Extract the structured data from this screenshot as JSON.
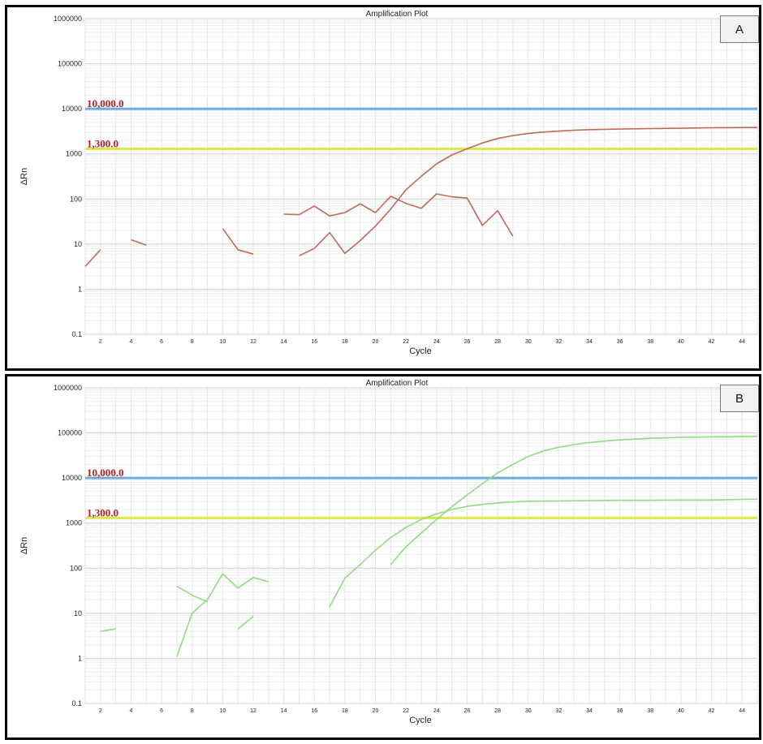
{
  "chart_data": [
    {
      "panel_label": "A",
      "type": "line",
      "title": "Amplification Plot",
      "xlabel": "Cycle",
      "ylabel": "ΔRn",
      "xlim": [
        1,
        45
      ],
      "ylim": [
        0.1,
        1000000
      ],
      "y_scale": "log",
      "x_ticks": [
        2,
        4,
        6,
        8,
        10,
        12,
        14,
        16,
        18,
        20,
        22,
        24,
        26,
        28,
        30,
        32,
        34,
        36,
        38,
        40,
        42,
        44
      ],
      "y_ticks": [
        0.1,
        1,
        10,
        100,
        1000,
        10000,
        100000,
        1000000
      ],
      "y_tick_labels": [
        "0.1",
        "1",
        "10",
        "100",
        "1000",
        "10000",
        "100000",
        "1000000"
      ],
      "grid": true,
      "thresholds": [
        {
          "label": "10,000.0",
          "value": 10000,
          "color": "#6aaee0"
        },
        {
          "label": "1,300.0",
          "value": 1300,
          "color": "#d9e84f"
        }
      ],
      "series_color": "#c0695a",
      "series": [
        {
          "segments": [
            [
              [
                1,
                3.2
              ],
              [
                2,
                7.5
              ]
            ],
            [
              [
                4,
                12.5
              ],
              [
                5,
                9.5
              ]
            ],
            [
              [
                10,
                22
              ],
              [
                11,
                7.5
              ],
              [
                12,
                6
              ]
            ],
            [
              [
                15,
                5.5
              ],
              [
                16,
                8
              ],
              [
                17,
                18
              ],
              [
                18,
                6.2
              ],
              [
                19,
                12
              ],
              [
                20,
                25
              ],
              [
                21,
                60
              ],
              [
                22,
                160
              ],
              [
                23,
                320
              ],
              [
                24,
                600
              ],
              [
                25,
                950
              ],
              [
                26,
                1300
              ],
              [
                27,
                1750
              ],
              [
                28,
                2200
              ],
              [
                29,
                2550
              ],
              [
                30,
                2850
              ],
              [
                31,
                3050
              ],
              [
                32,
                3200
              ],
              [
                33,
                3350
              ],
              [
                34,
                3450
              ],
              [
                36,
                3550
              ],
              [
                38,
                3650
              ],
              [
                40,
                3700
              ],
              [
                42,
                3800
              ],
              [
                44,
                3850
              ],
              [
                45,
                3850
              ]
            ]
          ]
        },
        {
          "segments": [
            [
              [
                14,
                46
              ],
              [
                15,
                45
              ],
              [
                16,
                70
              ],
              [
                17,
                42
              ],
              [
                18,
                50
              ],
              [
                19,
                78
              ],
              [
                20,
                50
              ],
              [
                21,
                115
              ],
              [
                22,
                80
              ],
              [
                23,
                62
              ],
              [
                24,
                130
              ],
              [
                25,
                112
              ],
              [
                26,
                105
              ],
              [
                27,
                26
              ],
              [
                28,
                55
              ],
              [
                29,
                15
              ]
            ]
          ]
        }
      ]
    },
    {
      "panel_label": "B",
      "type": "line",
      "title": "Amplification Plot",
      "xlabel": "Cycle",
      "ylabel": "ΔRn",
      "xlim": [
        1,
        45
      ],
      "ylim": [
        0.1,
        1000000
      ],
      "y_scale": "log",
      "x_ticks": [
        2,
        4,
        6,
        8,
        10,
        12,
        14,
        16,
        18,
        20,
        22,
        24,
        26,
        28,
        30,
        32,
        34,
        36,
        38,
        40,
        42,
        44
      ],
      "y_ticks": [
        0.1,
        1,
        10,
        100,
        1000,
        10000,
        100000,
        1000000
      ],
      "y_tick_labels": [
        "0.1",
        "1",
        "10",
        "100",
        "1000",
        "10000",
        "100000",
        "1000000"
      ],
      "grid": true,
      "thresholds": [
        {
          "label": "10,000.0",
          "value": 10000,
          "color": "#6aaee0"
        },
        {
          "label": "1,300.0",
          "value": 1300,
          "color": "#d9e84f"
        }
      ],
      "series_color": "#8fdc82",
      "series": [
        {
          "segments": [
            [
              [
                2,
                4
              ],
              [
                3,
                4.5
              ]
            ],
            [
              [
                7,
                1.1
              ],
              [
                8,
                10
              ],
              [
                9,
                20
              ],
              [
                10,
                75
              ],
              [
                11,
                36
              ],
              [
                12,
                62
              ],
              [
                13,
                50
              ]
            ],
            [
              [
                11,
                4.5
              ],
              [
                12,
                8.5
              ]
            ],
            [
              [
                17,
                14
              ],
              [
                18,
                60
              ],
              [
                19,
                120
              ],
              [
                20,
                250
              ],
              [
                21,
                480
              ],
              [
                22,
                800
              ],
              [
                23,
                1200
              ],
              [
                24,
                1600
              ],
              [
                25,
                2000
              ],
              [
                26,
                2350
              ],
              [
                27,
                2600
              ],
              [
                28,
                2800
              ],
              [
                29,
                2950
              ],
              [
                30,
                3050
              ],
              [
                32,
                3100
              ],
              [
                34,
                3150
              ],
              [
                36,
                3200
              ],
              [
                38,
                3200
              ],
              [
                40,
                3250
              ],
              [
                42,
                3250
              ],
              [
                44,
                3350
              ],
              [
                45,
                3400
              ]
            ]
          ]
        },
        {
          "segments": [
            [
              [
                7,
                40
              ],
              [
                8,
                25
              ],
              [
                9,
                18
              ]
            ],
            [
              [
                21,
                120
              ],
              [
                22,
                300
              ],
              [
                23,
                600
              ],
              [
                24,
                1200
              ],
              [
                25,
                2300
              ],
              [
                26,
                4200
              ],
              [
                27,
                7500
              ],
              [
                28,
                13000
              ],
              [
                29,
                20000
              ],
              [
                30,
                30000
              ],
              [
                31,
                40000
              ],
              [
                32,
                48000
              ],
              [
                33,
                55000
              ],
              [
                34,
                61000
              ],
              [
                35,
                66000
              ],
              [
                36,
                70000
              ],
              [
                37,
                73000
              ],
              [
                38,
                76000
              ],
              [
                40,
                80000
              ],
              [
                42,
                82000
              ],
              [
                44,
                83000
              ],
              [
                45,
                84000
              ]
            ]
          ]
        }
      ]
    }
  ]
}
